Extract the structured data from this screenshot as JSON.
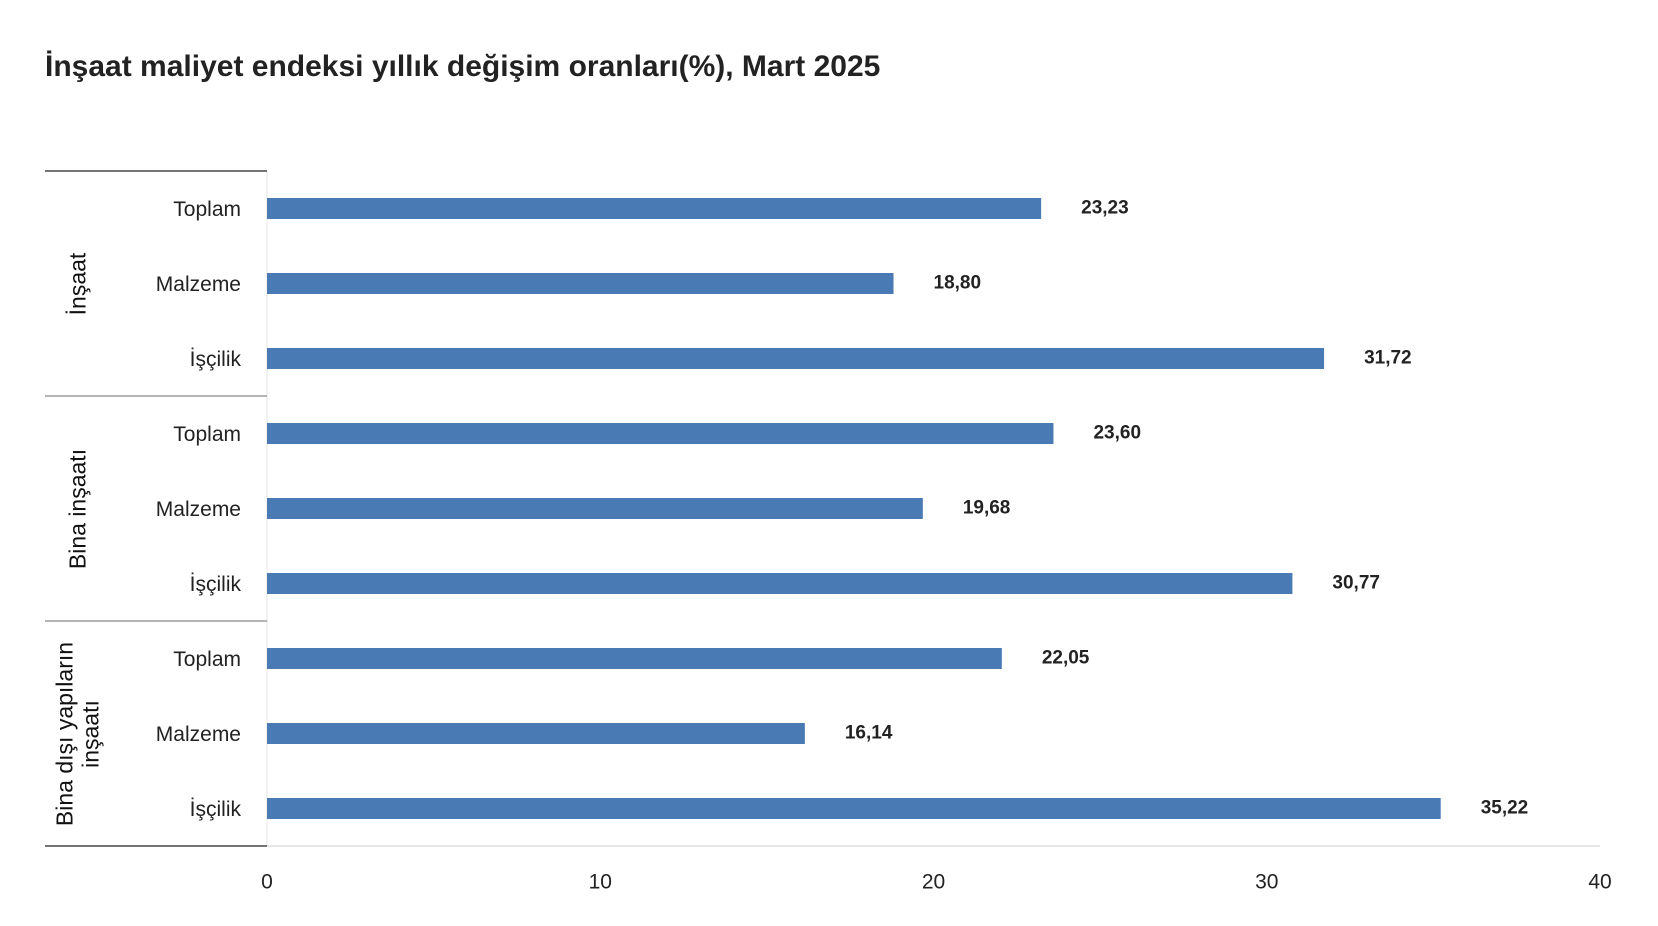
{
  "chart_data": {
    "type": "bar",
    "orientation": "horizontal",
    "title": "İnşaat maliyet endeksi yıllık değişim oranları(%), Mart 2025",
    "groups": [
      {
        "name": "İnşaat",
        "categories": [
          "Toplam",
          "Malzeme",
          "İşçilik"
        ],
        "values": [
          23.23,
          18.8,
          31.72
        ],
        "value_labels": [
          "23,23",
          "18,80",
          "31,72"
        ]
      },
      {
        "name": "Bina inşaatı",
        "categories": [
          "Toplam",
          "Malzeme",
          "İşçilik"
        ],
        "values": [
          23.6,
          19.68,
          30.77
        ],
        "value_labels": [
          "23,60",
          "19,68",
          "30,77"
        ]
      },
      {
        "name": "Bina dışı yapıların inşaatı",
        "categories": [
          "Toplam",
          "Malzeme",
          "İşçilik"
        ],
        "values": [
          22.05,
          16.14,
          35.22
        ],
        "value_labels": [
          "22,05",
          "16,14",
          "35,22"
        ]
      }
    ],
    "color": "#4a7ab4",
    "xlim": [
      0,
      40
    ],
    "xticks": [
      0,
      10,
      20,
      30,
      40
    ]
  }
}
